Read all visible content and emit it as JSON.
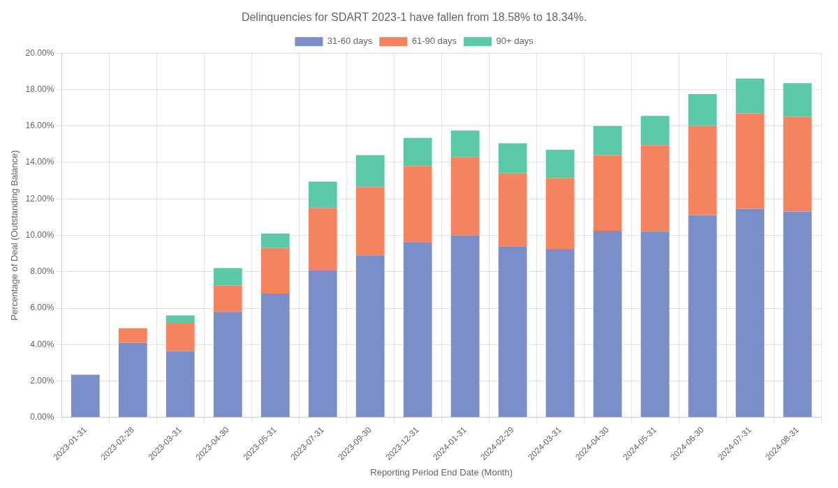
{
  "chart_data": {
    "type": "bar",
    "title": "Delinquencies for SDART 2023-1 have fallen from 18.58% to 18.34%.",
    "xlabel": "Reporting Period End Date (Month)",
    "ylabel": "Percentage of Deal (Outstanding Balance)",
    "categories": [
      "2023-01-31",
      "2023-02-28",
      "2023-03-31",
      "2023-04-30",
      "2023-05-31",
      "2023-07-31",
      "2023-09-30",
      "2023-12-31",
      "2024-01-31",
      "2024-02-29",
      "2024-03-31",
      "2024-04-30",
      "2024-05-31",
      "2024-06-30",
      "2024-07-31",
      "2024-08-31"
    ],
    "series": [
      {
        "name": "31-60 days",
        "color": "#7B8EC8",
        "values": [
          2.35,
          4.1,
          3.65,
          5.8,
          6.8,
          8.1,
          8.9,
          9.6,
          10.0,
          9.4,
          9.25,
          10.25,
          10.2,
          11.1,
          11.45,
          11.3
        ]
      },
      {
        "name": "61-90 days",
        "color": "#F4845F",
        "values": [
          0.0,
          0.8,
          1.55,
          1.45,
          2.5,
          3.4,
          3.75,
          4.2,
          4.3,
          4.0,
          3.9,
          4.15,
          4.75,
          4.9,
          5.25,
          5.2
        ]
      },
      {
        "name": "90+ days",
        "color": "#5BC8A8",
        "values": [
          0.0,
          0.0,
          0.4,
          0.95,
          0.8,
          1.45,
          1.75,
          1.55,
          1.45,
          1.65,
          1.55,
          1.6,
          1.6,
          1.75,
          1.9,
          1.85
        ]
      }
    ],
    "stacked": true,
    "ylim": [
      0,
      20
    ],
    "yticks": [
      {
        "value": 0,
        "label": "0.00%"
      },
      {
        "value": 2,
        "label": "2.00%"
      },
      {
        "value": 4,
        "label": "4.00%"
      },
      {
        "value": 6,
        "label": "6.00%"
      },
      {
        "value": 8,
        "label": "8.00%"
      },
      {
        "value": 10,
        "label": "10.00%"
      },
      {
        "value": 12,
        "label": "12.00%"
      },
      {
        "value": 14,
        "label": "14.00%"
      },
      {
        "value": 16,
        "label": "16.00%"
      },
      {
        "value": 18,
        "label": "18.00%"
      },
      {
        "value": 20,
        "label": "20.00%"
      }
    ],
    "grid": true,
    "legend": "top"
  }
}
